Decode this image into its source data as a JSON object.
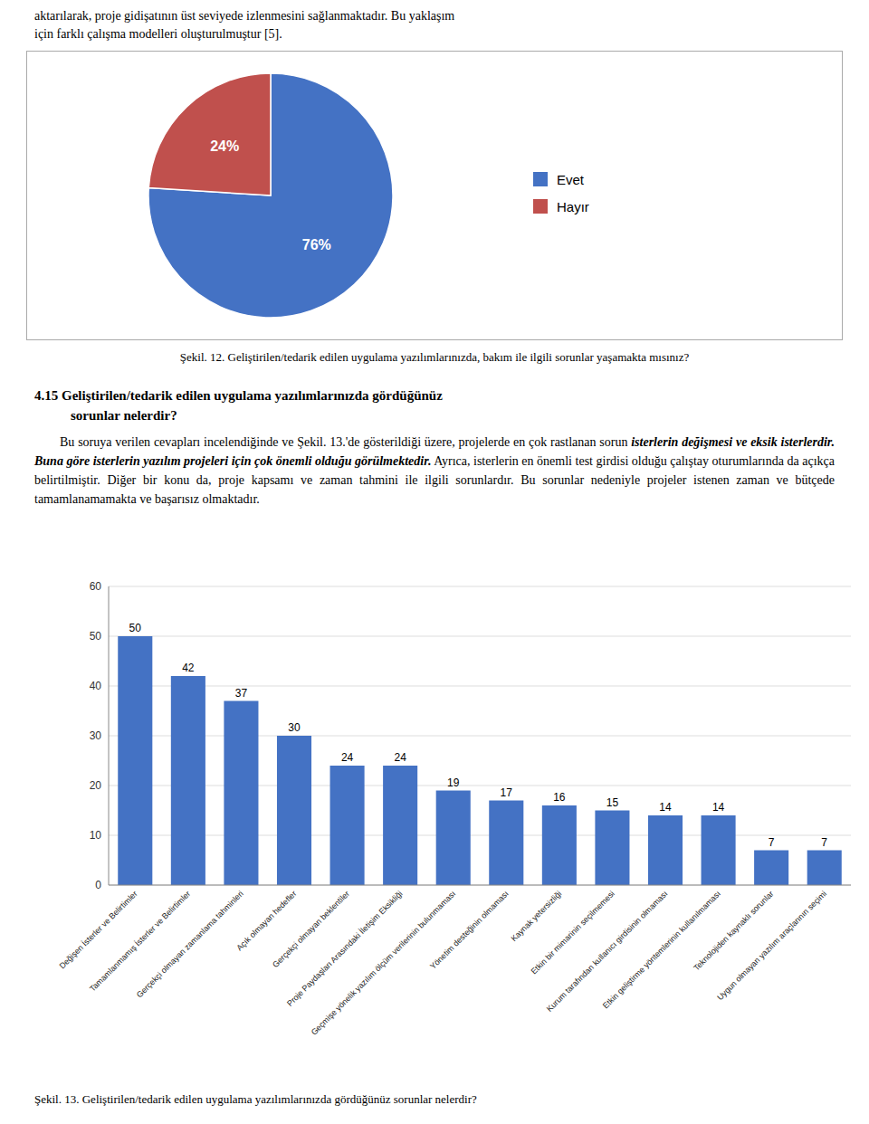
{
  "chart_data": [
    {
      "type": "pie",
      "title": "Şekil. 12. Geliştirilen/tedarik edilen uygulama yazılımlarınızda, bakım ile ilgili sorunlar yaşamakta mısınız?",
      "annotations": [
        "aktarılarak, proje gidişatının üst seviyede izlenmesini sağlanmaktadır. Bu yaklaşım",
        "için farklı çalışma modelleri oluşturulmuştur [5]."
      ],
      "categories": [
        "Evet",
        "Hayır"
      ],
      "values": [
        76,
        24
      ],
      "value_labels": [
        "76%",
        "24%"
      ],
      "colors": [
        "#4472C4",
        "#C0504D"
      ],
      "data_labels": true,
      "legend": "right"
    },
    {
      "type": "bar",
      "title": "Şekil. 13. Geliştirilen/tedarik edilen uygulama yazılımlarınızda gördüğünüz sorunlar nelerdir?",
      "annotations": [
        "4.15 Geliştirilen/tedarik edilen uygulama yazılımlarınızda gördüğünüz",
        "sorunlar nelerdir?",
        "Bu soruya verilen cevapları incelendiğinde ve Şekil. 13.'de gösterildiği üzere, projelerde en çok rastlanan sorun",
        "isterlerin değişmesi ve eksik isterlerdir. Buna göre isterlerin yazılım projeleri için çok önemli olduğu görülmektedir.",
        "Ayrıca, isterlerin en önemli test girdisi olduğu çalıştay oturumlarında da açıkça belirtilmiştir. Diğer bir konu da, proje kapsamı ve zaman tahmini ile ilgili sorunlardır. Bu sorunlar nedeniyle projeler istenen zaman ve bütçede tamamlanamamakta ve başarısız olmaktadır."
      ],
      "categories": [
        "Değişen İsterler ve Belirtimler",
        "Tamamlanmamış İsterler ve Belirtimler",
        "Gerçekçi olmayan zamanlama tahminleri",
        "Açık olmayan hedefler",
        "Gerçekçi olmayan beklentiler",
        "Proje Paydaşları Arasındaki İletişim Eksikliği",
        "Geçmişe yönelik yazılım ölçüm verilerinin bulunmaması",
        "Yönetim desteğinin olmaması",
        "Kaynak yetersizliği",
        "Etkin bir mimarinin seçilmemesi",
        "Kurum tarafından kullanıcı girdisinin olmaması",
        "Etkin geliştirme yöntemlerinin kullanılmaması",
        "Teknolojiden kaynaklı sorunlar",
        "Uygun olmayan yazılım araçlarının seçimi"
      ],
      "values": [
        50,
        42,
        37,
        30,
        24,
        24,
        19,
        17,
        16,
        15,
        14,
        14,
        7,
        7
      ],
      "color": "#4472C4",
      "ylim": [
        0,
        60
      ],
      "yticks": [
        0,
        10,
        20,
        30,
        40,
        50,
        60
      ],
      "grid": true,
      "data_labels": true
    }
  ]
}
